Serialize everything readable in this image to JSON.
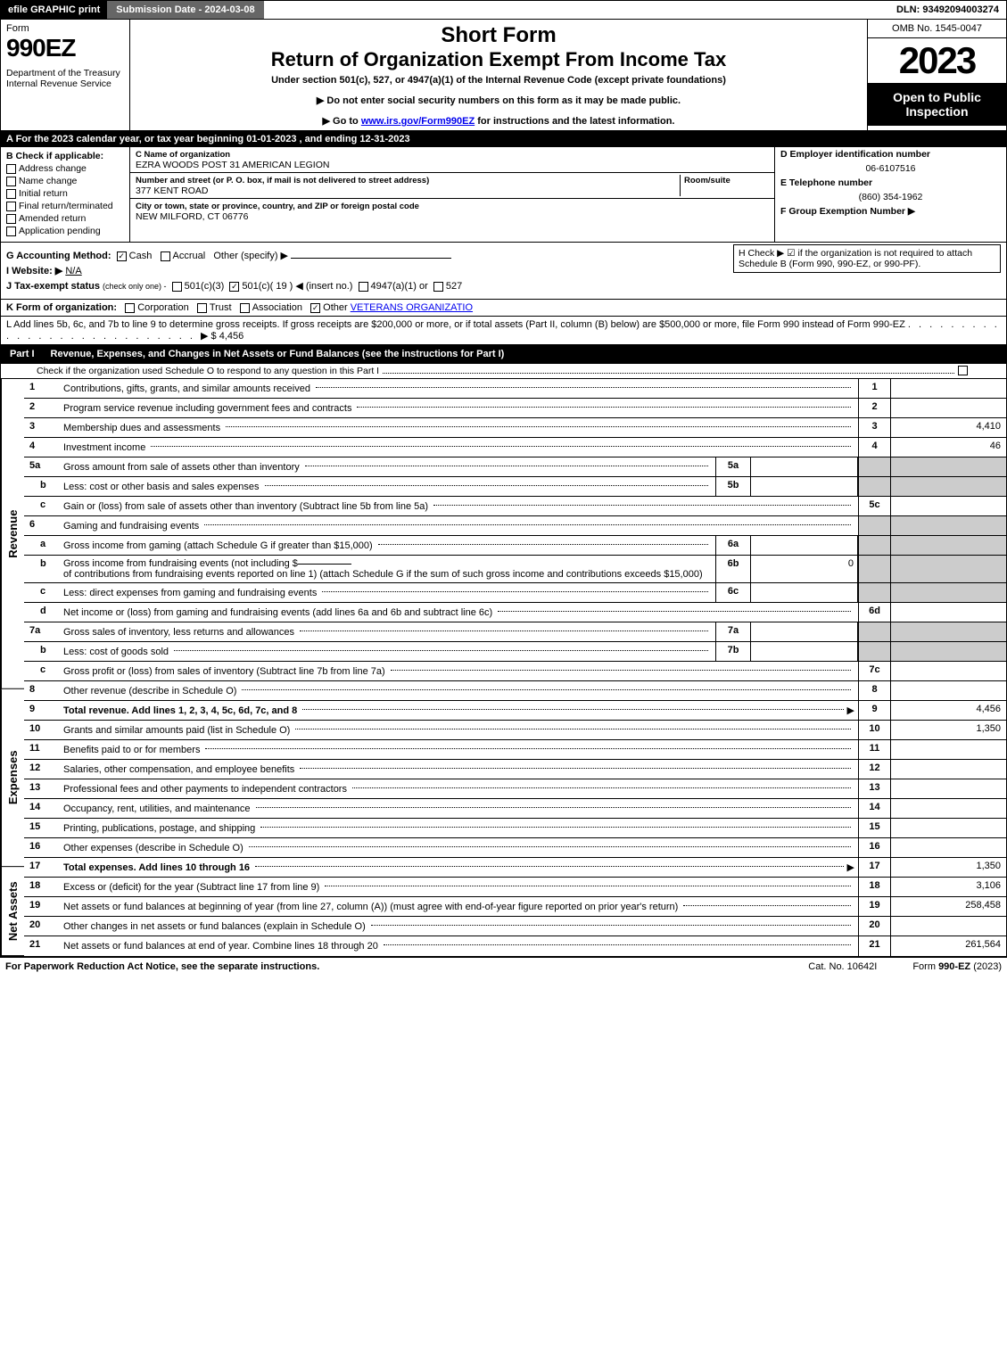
{
  "topbar": {
    "efile": "efile GRAPHIC print",
    "submission": "Submission Date - 2024-03-08",
    "dln": "DLN: 93492094003274"
  },
  "header": {
    "form_label": "Form",
    "form_number": "990EZ",
    "dept": "Department of the Treasury\nInternal Revenue Service",
    "title1": "Short Form",
    "title2": "Return of Organization Exempt From Income Tax",
    "subtitle": "Under section 501(c), 527, or 4947(a)(1) of the Internal Revenue Code (except private foundations)",
    "note1": "▶ Do not enter social security numbers on this form as it may be made public.",
    "note2_pre": "▶ Go to ",
    "note2_link": "www.irs.gov/Form990EZ",
    "note2_post": " for instructions and the latest information.",
    "omb": "OMB No. 1545-0047",
    "year": "2023",
    "open": "Open to Public Inspection"
  },
  "rowA": "A  For the 2023 calendar year, or tax year beginning 01-01-2023 , and ending 12-31-2023",
  "B": {
    "label": "B  Check if applicable:",
    "items": [
      "Address change",
      "Name change",
      "Initial return",
      "Final return/terminated",
      "Amended return",
      "Application pending"
    ]
  },
  "C": {
    "name_lbl": "C Name of organization",
    "name": "EZRA WOODS POST 31 AMERICAN LEGION",
    "street_lbl": "Number and street (or P. O. box, if mail is not delivered to street address)",
    "room_lbl": "Room/suite",
    "street": "377 KENT ROAD",
    "city_lbl": "City or town, state or province, country, and ZIP or foreign postal code",
    "city": "NEW MILFORD, CT  06776"
  },
  "DEF": {
    "d_lbl": "D Employer identification number",
    "d_val": "06-6107516",
    "e_lbl": "E Telephone number",
    "e_val": "(860) 354-1962",
    "f_lbl": "F Group Exemption Number  ▶"
  },
  "G": {
    "label": "G Accounting Method:",
    "cash": "Cash",
    "accrual": "Accrual",
    "other": "Other (specify) ▶"
  },
  "H": {
    "text": "H  Check ▶ ☑ if the organization is not required to attach Schedule B (Form 990, 990-EZ, or 990-PF)."
  },
  "I": {
    "label": "I Website: ▶",
    "val": "N/A"
  },
  "J": {
    "label": "J Tax-exempt status",
    "sub": "(check only one) -",
    "opt1": "501(c)(3)",
    "opt2": "501(c)( 19 ) ◀ (insert no.)",
    "opt3": "4947(a)(1) or",
    "opt4": "527"
  },
  "K": {
    "label": "K Form of organization:",
    "opts": [
      "Corporation",
      "Trust",
      "Association"
    ],
    "other_lbl": "Other",
    "other_val": "VETERANS ORGANIZATIO"
  },
  "L": {
    "text": "L Add lines 5b, 6c, and 7b to line 9 to determine gross receipts. If gross receipts are $200,000 or more, or if total assets (Part II, column (B) below) are $500,000 or more, file Form 990 instead of Form 990-EZ",
    "amt": "▶ $ 4,456"
  },
  "partI": {
    "label": "Part I",
    "title": "Revenue, Expenses, and Changes in Net Assets or Fund Balances (see the instructions for Part I)",
    "check": "Check if the organization used Schedule O to respond to any question in this Part I",
    "checkbox_val": "☐"
  },
  "sides": {
    "rev": "Revenue",
    "exp": "Expenses",
    "na": "Net Assets"
  },
  "lines": {
    "1": {
      "n": "1",
      "d": "Contributions, gifts, grants, and similar amounts received",
      "r": "1",
      "v": ""
    },
    "2": {
      "n": "2",
      "d": "Program service revenue including government fees and contracts",
      "r": "2",
      "v": ""
    },
    "3": {
      "n": "3",
      "d": "Membership dues and assessments",
      "r": "3",
      "v": "4,410"
    },
    "4": {
      "n": "4",
      "d": "Investment income",
      "r": "4",
      "v": "46"
    },
    "5a": {
      "n": "5a",
      "d": "Gross amount from sale of assets other than inventory",
      "ib": "5a",
      "iv": ""
    },
    "5b": {
      "n": "b",
      "d": "Less: cost or other basis and sales expenses",
      "ib": "5b",
      "iv": ""
    },
    "5c": {
      "n": "c",
      "d": "Gain or (loss) from sale of assets other than inventory (Subtract line 5b from line 5a)",
      "r": "5c",
      "v": ""
    },
    "6": {
      "n": "6",
      "d": "Gaming and fundraising events"
    },
    "6a": {
      "n": "a",
      "d": "Gross income from gaming (attach Schedule G if greater than $15,000)",
      "ib": "6a",
      "iv": ""
    },
    "6b": {
      "n": "b",
      "d1": "Gross income from fundraising events (not including $",
      "d2": "of contributions from fundraising events reported on line 1) (attach Schedule G if the sum of such gross income and contributions exceeds $15,000)",
      "ib": "6b",
      "iv": "0"
    },
    "6c": {
      "n": "c",
      "d": "Less: direct expenses from gaming and fundraising events",
      "ib": "6c",
      "iv": ""
    },
    "6d": {
      "n": "d",
      "d": "Net income or (loss) from gaming and fundraising events (add lines 6a and 6b and subtract line 6c)",
      "r": "6d",
      "v": ""
    },
    "7a": {
      "n": "7a",
      "d": "Gross sales of inventory, less returns and allowances",
      "ib": "7a",
      "iv": ""
    },
    "7b": {
      "n": "b",
      "d": "Less: cost of goods sold",
      "ib": "7b",
      "iv": ""
    },
    "7c": {
      "n": "c",
      "d": "Gross profit or (loss) from sales of inventory (Subtract line 7b from line 7a)",
      "r": "7c",
      "v": ""
    },
    "8": {
      "n": "8",
      "d": "Other revenue (describe in Schedule O)",
      "r": "8",
      "v": ""
    },
    "9": {
      "n": "9",
      "d": "Total revenue. Add lines 1, 2, 3, 4, 5c, 6d, 7c, and 8",
      "r": "9",
      "v": "4,456",
      "bold": true,
      "arrow": true
    },
    "10": {
      "n": "10",
      "d": "Grants and similar amounts paid (list in Schedule O)",
      "r": "10",
      "v": "1,350"
    },
    "11": {
      "n": "11",
      "d": "Benefits paid to or for members",
      "r": "11",
      "v": ""
    },
    "12": {
      "n": "12",
      "d": "Salaries, other compensation, and employee benefits",
      "r": "12",
      "v": ""
    },
    "13": {
      "n": "13",
      "d": "Professional fees and other payments to independent contractors",
      "r": "13",
      "v": ""
    },
    "14": {
      "n": "14",
      "d": "Occupancy, rent, utilities, and maintenance",
      "r": "14",
      "v": ""
    },
    "15": {
      "n": "15",
      "d": "Printing, publications, postage, and shipping",
      "r": "15",
      "v": ""
    },
    "16": {
      "n": "16",
      "d": "Other expenses (describe in Schedule O)",
      "r": "16",
      "v": ""
    },
    "17": {
      "n": "17",
      "d": "Total expenses. Add lines 10 through 16",
      "r": "17",
      "v": "1,350",
      "bold": true,
      "arrow": true
    },
    "18": {
      "n": "18",
      "d": "Excess or (deficit) for the year (Subtract line 17 from line 9)",
      "r": "18",
      "v": "3,106"
    },
    "19": {
      "n": "19",
      "d": "Net assets or fund balances at beginning of year (from line 27, column (A)) (must agree with end-of-year figure reported on prior year's return)",
      "r": "19",
      "v": "258,458"
    },
    "20": {
      "n": "20",
      "d": "Other changes in net assets or fund balances (explain in Schedule O)",
      "r": "20",
      "v": ""
    },
    "21": {
      "n": "21",
      "d": "Net assets or fund balances at end of year. Combine lines 18 through 20",
      "r": "21",
      "v": "261,564"
    }
  },
  "footer": {
    "left": "For Paperwork Reduction Act Notice, see the separate instructions.",
    "mid": "Cat. No. 10642I",
    "right": "Form 990-EZ (2023)"
  },
  "colors": {
    "black": "#000000",
    "white": "#ffffff",
    "gray_header": "#666666",
    "shade": "#cccccc",
    "link": "#0000ee"
  }
}
